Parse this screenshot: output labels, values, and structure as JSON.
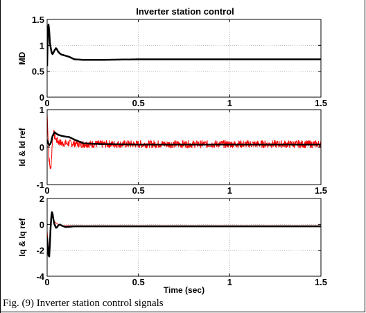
{
  "figure": {
    "title": "Inverter station control",
    "caption": "Fig. (9) Inverter station control signals"
  },
  "chart_data": [
    {
      "type": "line",
      "title": "Inverter station control",
      "xlabel": "",
      "ylabel": "MD",
      "xlim": [
        0,
        1.5
      ],
      "ylim": [
        0,
        1.5
      ],
      "xticks": [
        0,
        0.5,
        1,
        1.5
      ],
      "xtick_labels": [
        "0",
        "0.5",
        "1",
        "1.5"
      ],
      "yticks": [
        0,
        0.5,
        1,
        1.5
      ],
      "ytick_labels": [
        "0",
        "0.5",
        "1",
        "1.5"
      ],
      "grid": true,
      "series": [
        {
          "color": "#000000",
          "x": [
            0,
            0.005,
            0.01,
            0.015,
            0.02,
            0.025,
            0.03,
            0.04,
            0.05,
            0.06,
            0.07,
            0.08,
            0.1,
            0.12,
            0.15,
            0.2,
            0.3,
            0.5,
            1.0,
            1.5
          ],
          "y": [
            0.6,
            1.45,
            1.35,
            1.05,
            0.95,
            0.85,
            0.83,
            0.9,
            0.95,
            0.88,
            0.84,
            0.82,
            0.8,
            0.78,
            0.73,
            0.72,
            0.72,
            0.73,
            0.73,
            0.73
          ]
        }
      ]
    },
    {
      "type": "line",
      "xlabel": "",
      "ylabel": "Id & Id ref",
      "xlim": [
        0,
        1.5
      ],
      "ylim": [
        -1,
        1
      ],
      "xticks": [
        0,
        0.5,
        1,
        1.5
      ],
      "xtick_labels": [
        "0",
        "0.5",
        "1",
        "1.5"
      ],
      "yticks": [
        -1,
        0,
        1
      ],
      "ytick_labels": [
        "-1",
        "0",
        "1"
      ],
      "grid": true,
      "series": [
        {
          "color": "#ff0000",
          "noisy": true,
          "noise_amplitude": 0.1,
          "x": [
            0,
            0.005,
            0.01,
            0.015,
            0.02,
            0.025,
            0.03,
            0.035,
            0.04,
            0.05,
            0.06,
            0.08,
            0.1,
            0.15,
            0.2,
            0.3,
            0.5,
            1.0,
            1.5
          ],
          "y": [
            0.9,
            0.3,
            -0.3,
            -0.5,
            -0.6,
            -0.2,
            0.3,
            0.4,
            0.3,
            0.2,
            0.15,
            0.1,
            0.1,
            0.1,
            0.08,
            0.08,
            0.08,
            0.08,
            0.08
          ]
        },
        {
          "color": "#000000",
          "x": [
            0,
            0.01,
            0.02,
            0.03,
            0.04,
            0.06,
            0.08,
            0.1,
            0.12,
            0.15,
            0.2,
            0.3,
            0.5,
            1.0,
            1.5
          ],
          "y": [
            0.2,
            0.05,
            0.1,
            0.3,
            0.4,
            0.33,
            0.3,
            0.28,
            0.27,
            0.2,
            0.1,
            0.08,
            0.07,
            0.07,
            0.07
          ]
        }
      ]
    },
    {
      "type": "line",
      "xlabel": "Time (sec)",
      "ylabel": "Iq & Iq ref",
      "xlim": [
        0,
        1.5
      ],
      "ylim": [
        -4,
        2
      ],
      "xticks": [
        0,
        0.5,
        1,
        1.5
      ],
      "xtick_labels": [
        "0",
        "0.5",
        "1",
        "1.5"
      ],
      "yticks": [
        -4,
        -2,
        0,
        2
      ],
      "ytick_labels": [
        "-4",
        "-2",
        "0",
        "2"
      ],
      "grid": true,
      "series": [
        {
          "color": "#ff0000",
          "x": [
            0,
            0.005,
            0.01,
            0.015,
            0.02,
            0.025,
            0.03,
            0.04,
            0.05,
            0.06,
            0.08,
            0.1,
            0.15,
            0.2,
            0.3,
            0.5,
            1.0,
            1.5
          ],
          "y": [
            -0.5,
            -1.5,
            -2.3,
            -1.0,
            0.2,
            0.8,
            0.5,
            0.2,
            0.1,
            0.0,
            -0.1,
            -0.1,
            -0.1,
            -0.1,
            -0.1,
            -0.1,
            -0.1,
            -0.1
          ]
        },
        {
          "color": "#000000",
          "x": [
            0,
            0.005,
            0.01,
            0.015,
            0.02,
            0.025,
            0.03,
            0.035,
            0.04,
            0.05,
            0.06,
            0.07,
            0.08,
            0.1,
            0.15,
            0.2,
            0.3,
            0.5,
            1.0,
            1.5
          ],
          "y": [
            -1.0,
            -2.0,
            -2.8,
            -1.5,
            0.0,
            1.0,
            0.8,
            0.3,
            0.0,
            -0.3,
            -0.1,
            0.0,
            -0.1,
            -0.2,
            -0.15,
            -0.15,
            -0.15,
            -0.15,
            -0.15,
            -0.15
          ]
        }
      ]
    }
  ]
}
